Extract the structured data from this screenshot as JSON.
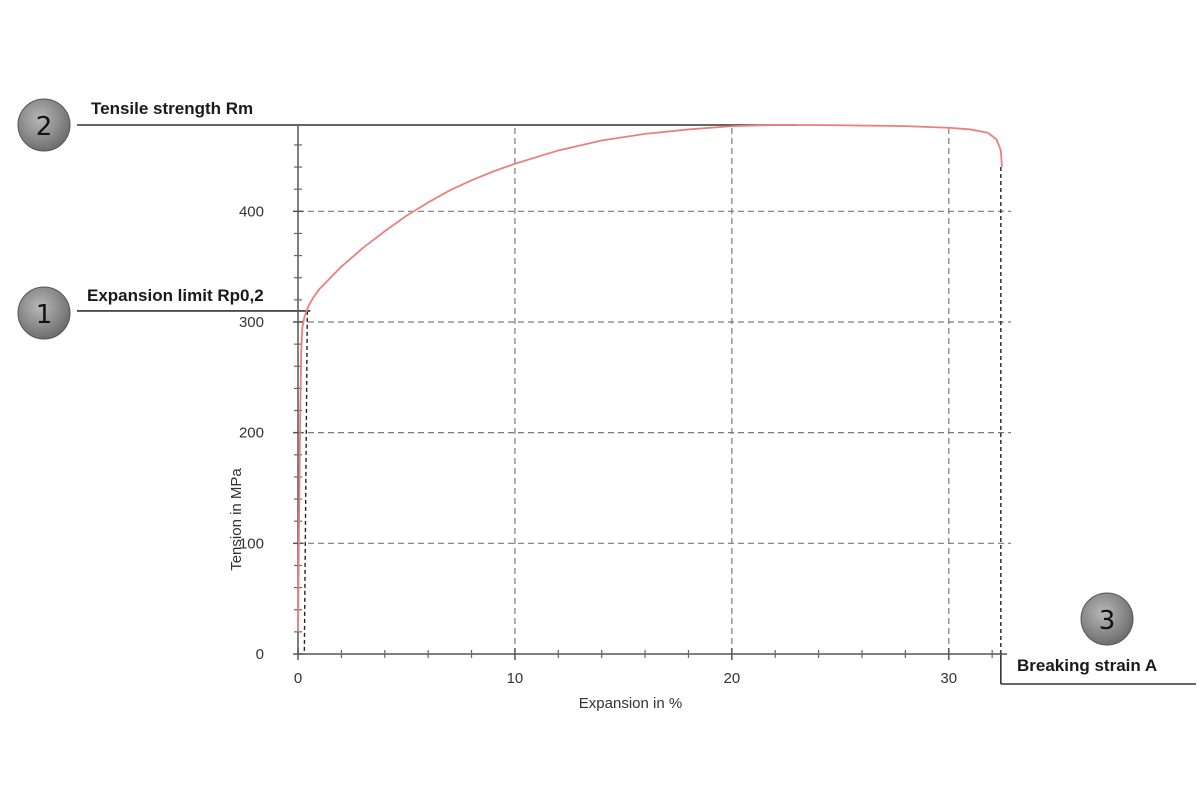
{
  "chart_data": {
    "type": "line",
    "xlabel": "Expansion in %",
    "ylabel": "Tension in MPa",
    "xlim": [
      0,
      32.5
    ],
    "ylim": [
      0,
      478
    ],
    "x_ticks": [
      0,
      10,
      20,
      30
    ],
    "y_ticks": [
      0,
      100,
      200,
      300,
      400
    ],
    "x_minor_step": 2,
    "y_minor_step": 20,
    "grid": true,
    "series": [
      {
        "color": "#e8817e",
        "x": [
          0,
          0.05,
          0.1,
          0.15,
          0.2,
          0.3,
          0.4,
          0.5,
          0.7,
          1,
          1.5,
          2,
          3,
          4,
          5,
          6,
          7,
          8,
          9,
          10,
          12,
          14,
          16,
          18,
          20,
          22,
          24,
          26,
          28,
          30,
          31,
          31.8,
          32.2,
          32.4,
          32.45
        ],
        "y": [
          20,
          120,
          215,
          275,
          295,
          305,
          310,
          315,
          322,
          330,
          340,
          350,
          367,
          382,
          396,
          408,
          419,
          428,
          436,
          443,
          455,
          464,
          470,
          474,
          477,
          478,
          478,
          477.5,
          477,
          475.5,
          474,
          471,
          465,
          455,
          440
        ]
      }
    ],
    "reference_lines": {
      "rp02": {
        "x": 0.2,
        "y": 310
      },
      "rm": {
        "x": 23.0,
        "y": 478
      },
      "break": {
        "x": 32.4,
        "y": 440
      }
    },
    "annotations": [
      {
        "number": "2",
        "label": "Tensile strength Rm"
      },
      {
        "number": "1",
        "label": "Expansion limit Rp0,2"
      },
      {
        "number": "3",
        "label": "Breaking strain A"
      }
    ]
  }
}
